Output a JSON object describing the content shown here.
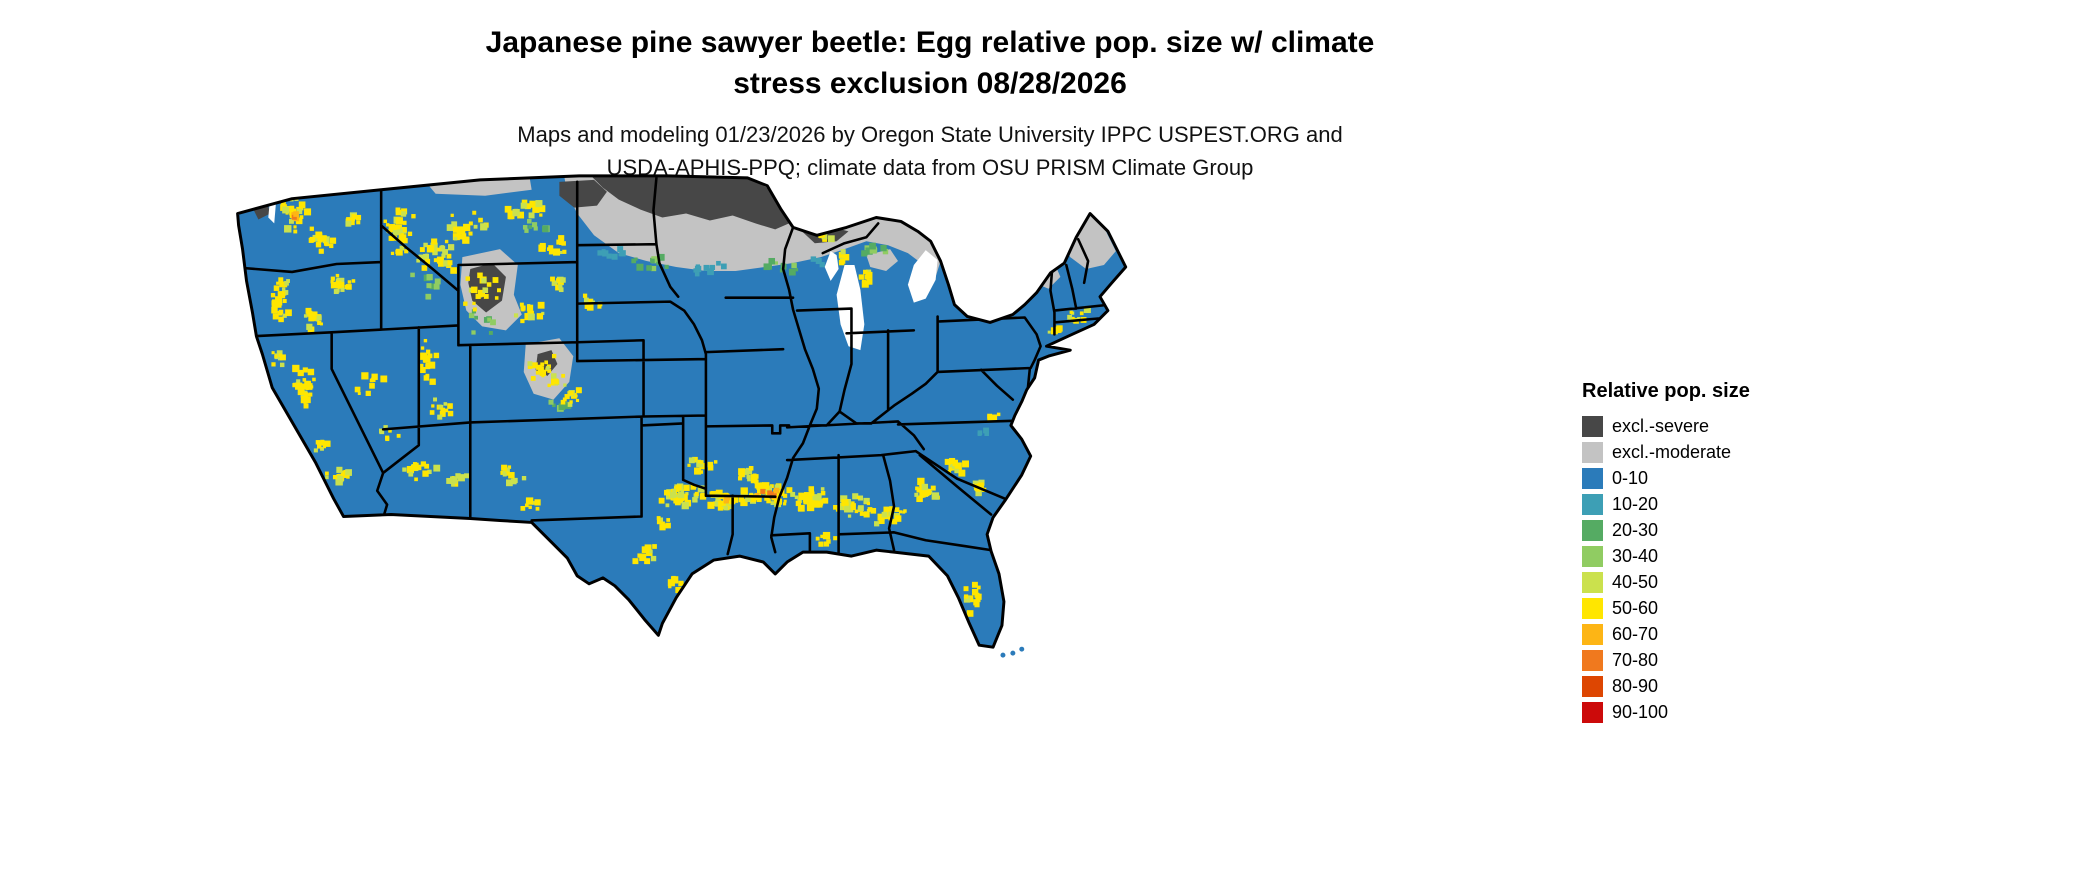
{
  "title": {
    "lines": [
      "Japanese pine sawyer beetle: Egg relative pop. size w/ climate",
      "stress exclusion 08/28/2026"
    ]
  },
  "subtitle": {
    "lines": [
      "Maps and modeling 01/23/2026 by Oregon State University IPPC USPEST.ORG and",
      "USDA-APHIS-PPQ; climate data from OSU PRISM Climate Group"
    ]
  },
  "map": {
    "name": "contiguous-us-relative-population-raster"
  },
  "legend": {
    "title": "Relative pop. size",
    "entries": [
      {
        "label": "excl.-severe",
        "color": "#474747"
      },
      {
        "label": "excl.-moderate",
        "color": "#c3c3c3"
      },
      {
        "label": "0-10",
        "color": "#2b7bba"
      },
      {
        "label": "10-20",
        "color": "#3d9fb5"
      },
      {
        "label": "20-30",
        "color": "#55ab63"
      },
      {
        "label": "30-40",
        "color": "#90cc62"
      },
      {
        "label": "40-50",
        "color": "#cbe14d"
      },
      {
        "label": "50-60",
        "color": "#ffe600"
      },
      {
        "label": "60-70",
        "color": "#fdb515"
      },
      {
        "label": "70-80",
        "color": "#f0791e"
      },
      {
        "label": "80-90",
        "color": "#dd4602"
      },
      {
        "label": "90-100",
        "color": "#cc0a0a"
      }
    ]
  }
}
